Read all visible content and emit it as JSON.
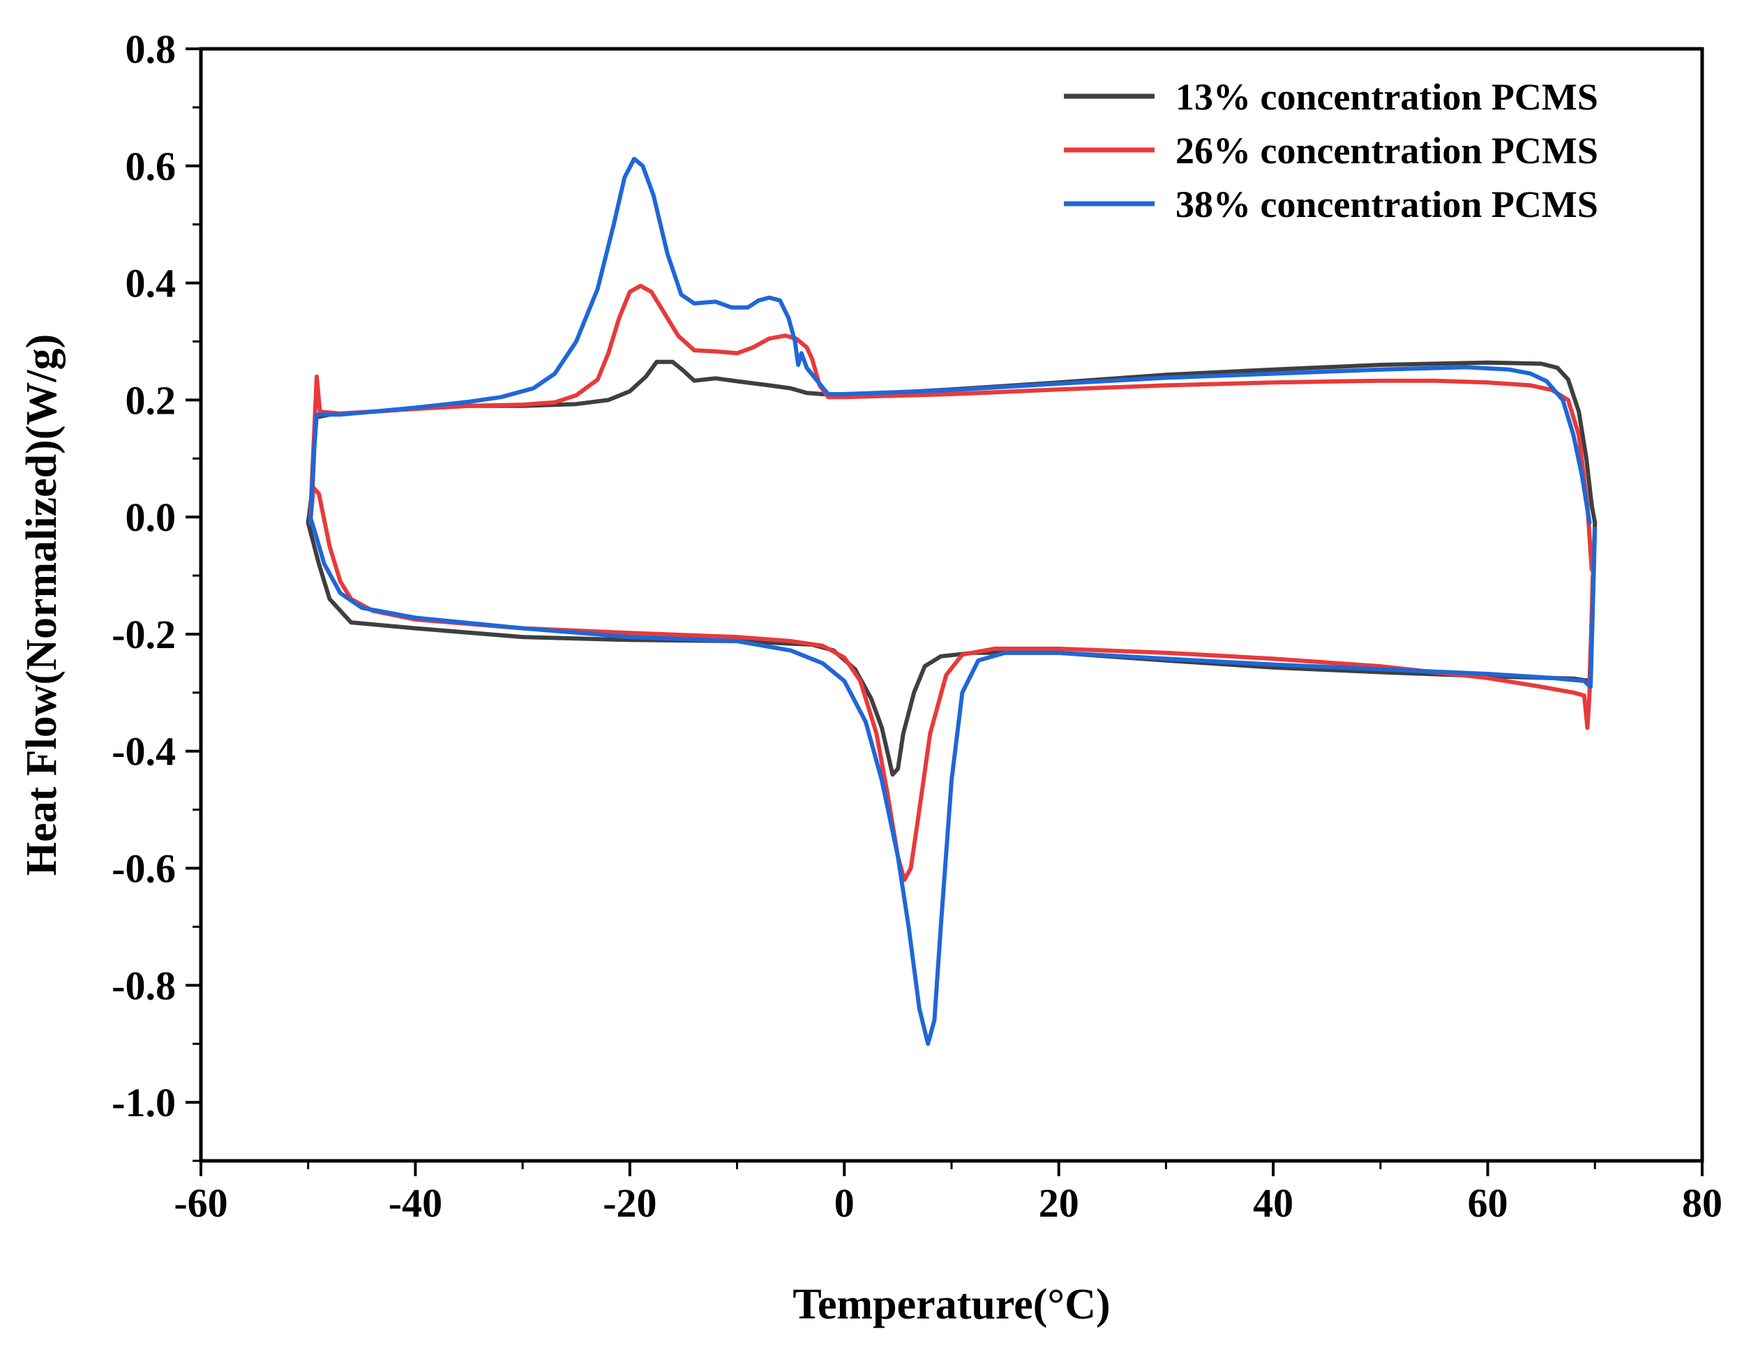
{
  "chart_data": {
    "type": "line",
    "title": "",
    "xlabel": "Temperature(°C)",
    "ylabel": "Heat Flow(Normalized)(W/g)",
    "xlim": [
      -60,
      80
    ],
    "ylim": [
      -1.1,
      0.8
    ],
    "xticks": [
      -60,
      -40,
      -20,
      0,
      20,
      40,
      60,
      80
    ],
    "xtick_labels": [
      "-60",
      "-40",
      "-20",
      "0",
      "20",
      "40",
      "60",
      "80"
    ],
    "yticks": [
      -1.0,
      -0.8,
      -0.6,
      -0.4,
      -0.2,
      0.0,
      0.2,
      0.4,
      0.6,
      0.8
    ],
    "ytick_labels": [
      "-1.0",
      "-0.8",
      "-0.6",
      "-0.4",
      "-0.2",
      "0.0",
      "0.2",
      "0.4",
      "0.6",
      "0.8"
    ],
    "grid": false,
    "legend_position": "top-right",
    "series": [
      {
        "name": "13% concentration PCMS",
        "color": "#3f3f3f",
        "cooling": [
          [
            -50,
            -0.01
          ],
          [
            -49.6,
            0.05
          ],
          [
            -49.3,
            0.17
          ],
          [
            -48,
            0.175
          ],
          [
            -44,
            0.18
          ],
          [
            -40,
            0.185
          ],
          [
            -35,
            0.19
          ],
          [
            -30,
            0.19
          ],
          [
            -25,
            0.193
          ],
          [
            -22,
            0.2
          ],
          [
            -20,
            0.215
          ],
          [
            -18.5,
            0.24
          ],
          [
            -17.5,
            0.265
          ],
          [
            -16,
            0.265
          ],
          [
            -15,
            0.25
          ],
          [
            -14,
            0.233
          ],
          [
            -12,
            0.237
          ],
          [
            -10,
            0.232
          ],
          [
            -7,
            0.225
          ],
          [
            -5,
            0.22
          ],
          [
            -3.5,
            0.212
          ],
          [
            -2,
            0.21
          ],
          [
            0,
            0.21
          ],
          [
            5,
            0.213
          ],
          [
            10,
            0.218
          ],
          [
            20,
            0.23
          ],
          [
            30,
            0.243
          ],
          [
            40,
            0.252
          ],
          [
            50,
            0.26
          ],
          [
            60,
            0.264
          ],
          [
            65,
            0.262
          ],
          [
            66.5,
            0.255
          ],
          [
            67.5,
            0.235
          ],
          [
            68.5,
            0.18
          ],
          [
            69.2,
            0.1
          ],
          [
            69.7,
            0.02
          ],
          [
            70,
            -0.01
          ]
        ],
        "heating": [
          [
            -50,
            -0.01
          ],
          [
            -49,
            -0.08
          ],
          [
            -48,
            -0.14
          ],
          [
            -46,
            -0.18
          ],
          [
            -40,
            -0.19
          ],
          [
            -30,
            -0.205
          ],
          [
            -20,
            -0.21
          ],
          [
            -10,
            -0.212
          ],
          [
            -3,
            -0.218
          ],
          [
            -1,
            -0.228
          ],
          [
            1,
            -0.26
          ],
          [
            2.5,
            -0.31
          ],
          [
            3.5,
            -0.36
          ],
          [
            4,
            -0.4
          ],
          [
            4.5,
            -0.44
          ],
          [
            5,
            -0.43
          ],
          [
            5.5,
            -0.37
          ],
          [
            6.5,
            -0.3
          ],
          [
            7.5,
            -0.255
          ],
          [
            9,
            -0.238
          ],
          [
            12,
            -0.232
          ],
          [
            20,
            -0.232
          ],
          [
            30,
            -0.245
          ],
          [
            40,
            -0.257
          ],
          [
            50,
            -0.265
          ],
          [
            60,
            -0.272
          ],
          [
            68,
            -0.276
          ],
          [
            69.5,
            -0.28
          ],
          [
            70,
            -0.01
          ]
        ]
      },
      {
        "name": "26% concentration PCMS",
        "color": "#e83a3a",
        "cooling": [
          [
            -49.8,
            0.0
          ],
          [
            -49.5,
            0.12
          ],
          [
            -49.2,
            0.24
          ],
          [
            -48.9,
            0.18
          ],
          [
            -47,
            0.177
          ],
          [
            -44,
            0.18
          ],
          [
            -40,
            0.185
          ],
          [
            -35,
            0.19
          ],
          [
            -30,
            0.192
          ],
          [
            -27,
            0.196
          ],
          [
            -25,
            0.208
          ],
          [
            -23,
            0.235
          ],
          [
            -22,
            0.28
          ],
          [
            -21,
            0.34
          ],
          [
            -20,
            0.385
          ],
          [
            -19,
            0.395
          ],
          [
            -18,
            0.385
          ],
          [
            -17,
            0.355
          ],
          [
            -15.5,
            0.31
          ],
          [
            -14,
            0.285
          ],
          [
            -12,
            0.283
          ],
          [
            -10,
            0.28
          ],
          [
            -8.5,
            0.29
          ],
          [
            -7,
            0.305
          ],
          [
            -5.5,
            0.31
          ],
          [
            -4.5,
            0.305
          ],
          [
            -3.5,
            0.29
          ],
          [
            -3,
            0.27
          ],
          [
            -2.3,
            0.225
          ],
          [
            -1.5,
            0.205
          ],
          [
            0,
            0.205
          ],
          [
            10,
            0.21
          ],
          [
            20,
            0.218
          ],
          [
            30,
            0.225
          ],
          [
            40,
            0.23
          ],
          [
            50,
            0.233
          ],
          [
            55,
            0.233
          ],
          [
            60,
            0.23
          ],
          [
            64,
            0.225
          ],
          [
            66,
            0.217
          ],
          [
            67.5,
            0.2
          ],
          [
            68.5,
            0.14
          ],
          [
            69.3,
            0.02
          ],
          [
            69.7,
            -0.09
          ]
        ],
        "heating": [
          [
            -49.8,
            -0.01
          ],
          [
            -49.5,
            0.05
          ],
          [
            -49,
            0.04
          ],
          [
            -48,
            -0.05
          ],
          [
            -47,
            -0.11
          ],
          [
            -46,
            -0.14
          ],
          [
            -44,
            -0.16
          ],
          [
            -40,
            -0.175
          ],
          [
            -30,
            -0.19
          ],
          [
            -20,
            -0.198
          ],
          [
            -10,
            -0.205
          ],
          [
            -5,
            -0.212
          ],
          [
            -2,
            -0.22
          ],
          [
            0,
            -0.24
          ],
          [
            1.5,
            -0.28
          ],
          [
            3,
            -0.37
          ],
          [
            4,
            -0.47
          ],
          [
            5,
            -0.58
          ],
          [
            5.6,
            -0.62
          ],
          [
            6.2,
            -0.6
          ],
          [
            7,
            -0.5
          ],
          [
            8,
            -0.37
          ],
          [
            9.5,
            -0.27
          ],
          [
            11,
            -0.235
          ],
          [
            14,
            -0.225
          ],
          [
            20,
            -0.225
          ],
          [
            30,
            -0.232
          ],
          [
            40,
            -0.242
          ],
          [
            50,
            -0.255
          ],
          [
            60,
            -0.275
          ],
          [
            65,
            -0.29
          ],
          [
            68,
            -0.3
          ],
          [
            69,
            -0.305
          ],
          [
            69.3,
            -0.36
          ],
          [
            69.5,
            -0.3
          ],
          [
            69.8,
            -0.1
          ]
        ]
      },
      {
        "name": "38% concentration PCMS",
        "color": "#1f67d8",
        "cooling": [
          [
            -49.8,
            -0.01
          ],
          [
            -49.5,
            0.1
          ],
          [
            -49.2,
            0.175
          ],
          [
            -47,
            0.175
          ],
          [
            -44,
            0.18
          ],
          [
            -40,
            0.187
          ],
          [
            -35,
            0.197
          ],
          [
            -32,
            0.205
          ],
          [
            -29,
            0.22
          ],
          [
            -27,
            0.245
          ],
          [
            -25,
            0.3
          ],
          [
            -23,
            0.39
          ],
          [
            -21.5,
            0.5
          ],
          [
            -20.5,
            0.58
          ],
          [
            -19.6,
            0.612
          ],
          [
            -18.8,
            0.6
          ],
          [
            -17.8,
            0.55
          ],
          [
            -16.5,
            0.45
          ],
          [
            -15.2,
            0.38
          ],
          [
            -14,
            0.365
          ],
          [
            -12,
            0.368
          ],
          [
            -10.5,
            0.358
          ],
          [
            -9,
            0.358
          ],
          [
            -8,
            0.37
          ],
          [
            -7,
            0.375
          ],
          [
            -6,
            0.37
          ],
          [
            -5.2,
            0.34
          ],
          [
            -4.6,
            0.3
          ],
          [
            -4.3,
            0.26
          ],
          [
            -4,
            0.28
          ],
          [
            -3.5,
            0.255
          ],
          [
            -2.5,
            0.232
          ],
          [
            -1.5,
            0.21
          ],
          [
            0,
            0.21
          ],
          [
            10,
            0.217
          ],
          [
            20,
            0.228
          ],
          [
            30,
            0.238
          ],
          [
            40,
            0.245
          ],
          [
            50,
            0.252
          ],
          [
            58,
            0.256
          ],
          [
            62,
            0.252
          ],
          [
            64,
            0.245
          ],
          [
            65.5,
            0.232
          ],
          [
            67,
            0.2
          ],
          [
            68,
            0.14
          ],
          [
            68.8,
            0.07
          ],
          [
            69.5,
            -0.01
          ]
        ],
        "heating": [
          [
            -49.8,
            0.0
          ],
          [
            -49.3,
            -0.03
          ],
          [
            -48.5,
            -0.08
          ],
          [
            -47,
            -0.13
          ],
          [
            -45,
            -0.155
          ],
          [
            -40,
            -0.172
          ],
          [
            -30,
            -0.19
          ],
          [
            -20,
            -0.205
          ],
          [
            -10,
            -0.212
          ],
          [
            -5,
            -0.228
          ],
          [
            -2,
            -0.25
          ],
          [
            0,
            -0.28
          ],
          [
            2,
            -0.35
          ],
          [
            3.5,
            -0.45
          ],
          [
            5,
            -0.58
          ],
          [
            6,
            -0.7
          ],
          [
            7,
            -0.84
          ],
          [
            7.8,
            -0.9
          ],
          [
            8.4,
            -0.86
          ],
          [
            9,
            -0.7
          ],
          [
            10,
            -0.45
          ],
          [
            11,
            -0.3
          ],
          [
            12.5,
            -0.245
          ],
          [
            15,
            -0.232
          ],
          [
            20,
            -0.232
          ],
          [
            30,
            -0.242
          ],
          [
            40,
            -0.252
          ],
          [
            50,
            -0.26
          ],
          [
            60,
            -0.268
          ],
          [
            66,
            -0.275
          ],
          [
            69,
            -0.28
          ],
          [
            69.6,
            -0.29
          ],
          [
            70,
            -0.02
          ]
        ]
      }
    ]
  }
}
